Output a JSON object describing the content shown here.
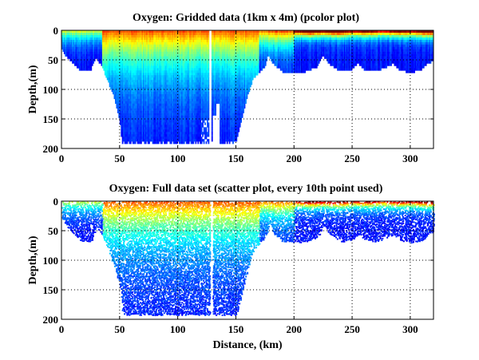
{
  "chart_data": [
    {
      "type": "heatmap",
      "title": "Oxygen: Gridded data (1km x 4m) (pcolor plot)",
      "xlabel": "",
      "ylabel": "Depth,(m)",
      "xlim": [
        0,
        320
      ],
      "ylim": [
        200,
        0
      ],
      "xticks": [
        "0",
        "50",
        "100",
        "150",
        "200",
        "250",
        "300"
      ],
      "xtick_values": [
        0,
        50,
        100,
        150,
        200,
        250,
        300
      ],
      "yticks": [
        "0",
        "50",
        "100",
        "150",
        "200"
      ],
      "ytick_values": [
        0,
        50,
        100,
        150,
        200
      ],
      "grid": true,
      "colormap": "jet",
      "bottom_profile": {
        "distance_km": [
          0,
          5,
          10,
          15,
          20,
          25,
          27,
          30,
          35,
          40,
          45,
          50,
          52,
          55,
          150,
          155,
          160,
          165,
          170,
          175,
          178,
          182,
          190,
          200,
          210,
          220,
          225,
          230,
          240,
          250,
          255,
          260,
          270,
          280,
          285,
          290,
          300,
          310,
          315,
          320
        ],
        "max_depth_m": [
          30,
          45,
          55,
          65,
          68,
          68,
          55,
          45,
          60,
          85,
          110,
          150,
          190,
          192,
          192,
          150,
          110,
          80,
          70,
          60,
          40,
          55,
          68,
          70,
          68,
          60,
          40,
          55,
          68,
          65,
          55,
          65,
          68,
          60,
          55,
          65,
          70,
          65,
          55,
          50
        ]
      }
    },
    {
      "type": "scatter",
      "title": "Oxygen: Full data set (scatter plot, every 10th point used)",
      "xlabel": "Distance, (km)",
      "ylabel": "Depth,(m)",
      "xlim": [
        0,
        320
      ],
      "ylim": [
        200,
        0
      ],
      "xticks": [
        "0",
        "50",
        "100",
        "150",
        "200",
        "250",
        "300"
      ],
      "xtick_values": [
        0,
        50,
        100,
        150,
        200,
        250,
        300
      ],
      "yticks": [
        "0",
        "50",
        "100",
        "150",
        "200"
      ],
      "ytick_values": [
        0,
        50,
        100,
        150,
        200
      ],
      "grid": true,
      "colormap": "jet"
    }
  ]
}
